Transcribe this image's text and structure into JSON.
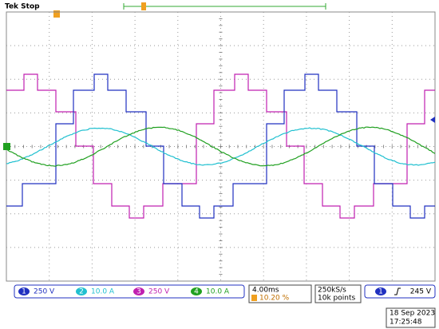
{
  "header": {
    "status": "Tek Stop"
  },
  "channels": [
    {
      "number": "1",
      "scale": "250 V"
    },
    {
      "number": "2",
      "scale": "10.0 A"
    },
    {
      "number": "3",
      "scale": "250 V"
    },
    {
      "number": "4",
      "scale": "10.0 A"
    }
  ],
  "timebase": {
    "scale": "4.00ms",
    "trigger_position": "10.20 %"
  },
  "acquisition": {
    "sample_rate": "250kS/s",
    "record_length": "10k points"
  },
  "trigger": {
    "source": "1",
    "level": "245 V"
  },
  "timestamp": {
    "date": "18 Sep  2023",
    "time": "17:25:48"
  }
}
